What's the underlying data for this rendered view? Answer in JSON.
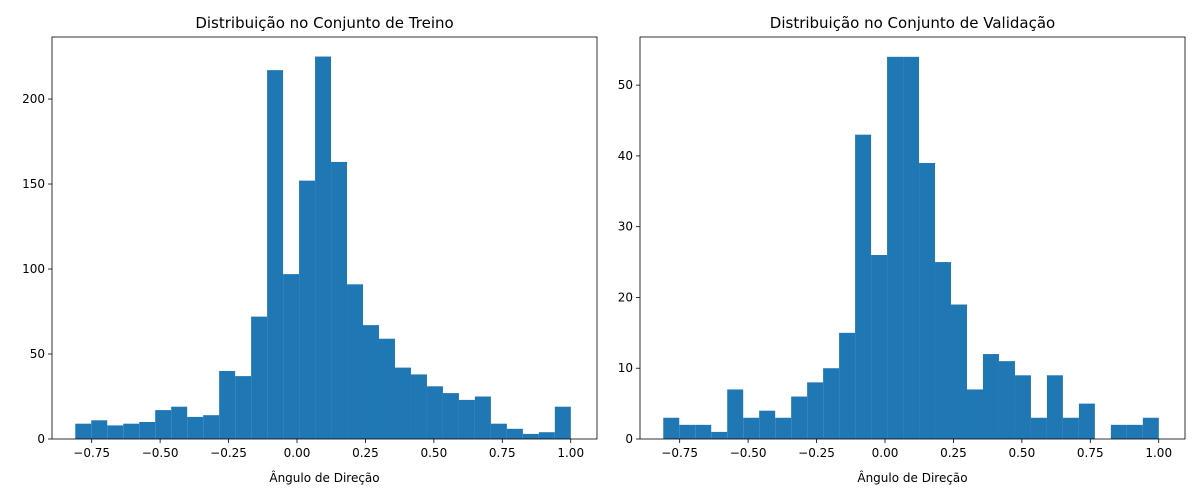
{
  "chart_data": [
    {
      "type": "histogram",
      "title": "Distribuição no Conjunto de Treino",
      "x_label": "Ângulo de Direção",
      "color": "#1f77b4",
      "bins": [
        -0.81,
        -0.7516,
        -0.6932,
        -0.6348,
        -0.5764,
        -0.518,
        -0.4596,
        -0.4012,
        -0.3428,
        -0.2844,
        -0.226,
        -0.1676,
        -0.1092,
        -0.0508,
        0.0076,
        0.066,
        0.1244,
        0.1828,
        0.2412,
        0.2996,
        0.358,
        0.4164,
        0.4748,
        0.5332,
        0.5916,
        0.65,
        0.7084,
        0.7668,
        0.8252,
        0.8836,
        0.942,
        1.0004
      ],
      "values": [
        9,
        11,
        8,
        9,
        10,
        17,
        19,
        13,
        14,
        40,
        37,
        72,
        217,
        97,
        152,
        225,
        163,
        91,
        67,
        59,
        42,
        38,
        31,
        27,
        23,
        25,
        9,
        6,
        3,
        4,
        19
      ],
      "xlim": [
        -0.895,
        1.096
      ],
      "ylim": [
        0,
        236.5
      ],
      "xticks": [
        {
          "value": -0.75,
          "label": "−0.75"
        },
        {
          "value": -0.5,
          "label": "−0.50"
        },
        {
          "value": -0.25,
          "label": "−0.25"
        },
        {
          "value": 0,
          "label": "0.00"
        },
        {
          "value": 0.25,
          "label": "0.25"
        },
        {
          "value": 0.5,
          "label": "0.50"
        },
        {
          "value": 0.75,
          "label": "0.75"
        },
        {
          "value": 1,
          "label": "1.00"
        }
      ],
      "yticks": [
        0,
        50,
        100,
        150,
        200
      ]
    },
    {
      "type": "histogram",
      "title": "Distribuição no Conjunto de Validação",
      "x_label": "Ângulo de Direção",
      "color": "#1f77b4",
      "bins": [
        -0.81,
        -0.7516,
        -0.6932,
        -0.6348,
        -0.5764,
        -0.518,
        -0.4596,
        -0.4012,
        -0.3428,
        -0.2844,
        -0.226,
        -0.1676,
        -0.1092,
        -0.0508,
        0.0076,
        0.066,
        0.1244,
        0.1828,
        0.2412,
        0.2996,
        0.358,
        0.4164,
        0.4748,
        0.5332,
        0.5916,
        0.65,
        0.7084,
        0.7668,
        0.8252,
        0.8836,
        0.942,
        1.0004
      ],
      "values": [
        3,
        2,
        2,
        1,
        7,
        3,
        4,
        3,
        6,
        8,
        10,
        15,
        43,
        26,
        54,
        54,
        39,
        25,
        19,
        7,
        12,
        11,
        9,
        3,
        9,
        3,
        5,
        0,
        2,
        2,
        3
      ],
      "xlim": [
        -0.895,
        1.096
      ],
      "ylim": [
        0,
        56.8
      ],
      "xticks": [
        {
          "value": -0.75,
          "label": "−0.75"
        },
        {
          "value": -0.5,
          "label": "−0.50"
        },
        {
          "value": -0.25,
          "label": "−0.25"
        },
        {
          "value": 0,
          "label": "0.00"
        },
        {
          "value": 0.25,
          "label": "0.25"
        },
        {
          "value": 0.5,
          "label": "0.50"
        },
        {
          "value": 0.75,
          "label": "0.75"
        },
        {
          "value": 1,
          "label": "1.00"
        }
      ],
      "yticks": [
        0,
        10,
        20,
        30,
        40,
        50
      ]
    }
  ]
}
